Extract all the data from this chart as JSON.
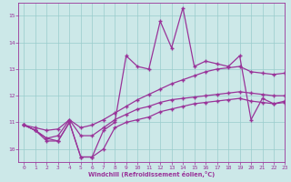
{
  "xlabel": "Windchill (Refroidissement éolien,°C)",
  "bg_color": "#cce8e8",
  "grid_color": "#99cccc",
  "line_color": "#993399",
  "xlim": [
    -0.5,
    23
  ],
  "ylim": [
    9.5,
    15.5
  ],
  "yticks": [
    10,
    11,
    12,
    13,
    14,
    15
  ],
  "xticks": [
    0,
    1,
    2,
    3,
    4,
    5,
    6,
    7,
    8,
    9,
    10,
    11,
    12,
    13,
    14,
    15,
    16,
    17,
    18,
    19,
    20,
    21,
    22,
    23
  ],
  "series1_x": [
    0,
    1,
    2,
    3,
    4,
    5,
    6,
    7,
    8,
    9,
    10,
    11,
    12,
    13,
    14,
    15,
    16,
    17,
    18,
    19,
    20,
    21,
    22,
    23
  ],
  "series1_y": [
    10.9,
    10.7,
    10.4,
    10.3,
    11.0,
    9.7,
    9.7,
    10.7,
    11.0,
    13.5,
    13.1,
    13.0,
    14.8,
    13.8,
    15.3,
    13.1,
    13.3,
    13.2,
    13.1,
    13.5,
    11.1,
    11.9,
    11.7,
    11.8
  ],
  "series2_x": [
    0,
    1,
    2,
    3,
    4,
    5,
    6,
    7,
    8,
    9,
    10,
    11,
    12,
    13,
    14,
    15,
    16,
    17,
    18,
    19,
    20,
    21,
    22,
    23
  ],
  "series2_y": [
    10.9,
    10.7,
    10.3,
    10.3,
    11.0,
    9.7,
    9.7,
    10.0,
    10.8,
    11.0,
    11.1,
    11.2,
    11.4,
    11.5,
    11.6,
    11.7,
    11.75,
    11.8,
    11.85,
    11.9,
    11.8,
    11.75,
    11.7,
    11.75
  ],
  "series3_x": [
    0,
    1,
    2,
    3,
    4,
    5,
    6,
    7,
    8,
    9,
    10,
    11,
    12,
    13,
    14,
    15,
    16,
    17,
    18,
    19,
    20,
    21,
    22,
    23
  ],
  "series3_y": [
    10.9,
    10.7,
    10.4,
    10.5,
    11.1,
    10.5,
    10.5,
    10.8,
    11.1,
    11.3,
    11.5,
    11.6,
    11.75,
    11.85,
    11.9,
    11.95,
    12.0,
    12.05,
    12.1,
    12.15,
    12.1,
    12.05,
    12.0,
    12.0
  ],
  "series4_x": [
    0,
    1,
    2,
    3,
    4,
    5,
    6,
    7,
    8,
    9,
    10,
    11,
    12,
    13,
    14,
    15,
    16,
    17,
    18,
    19,
    20,
    21,
    22,
    23
  ],
  "series4_y": [
    10.9,
    10.8,
    10.7,
    10.75,
    11.1,
    10.8,
    10.9,
    11.1,
    11.35,
    11.6,
    11.85,
    12.05,
    12.25,
    12.45,
    12.6,
    12.75,
    12.9,
    13.0,
    13.05,
    13.1,
    12.9,
    12.85,
    12.8,
    12.85
  ]
}
